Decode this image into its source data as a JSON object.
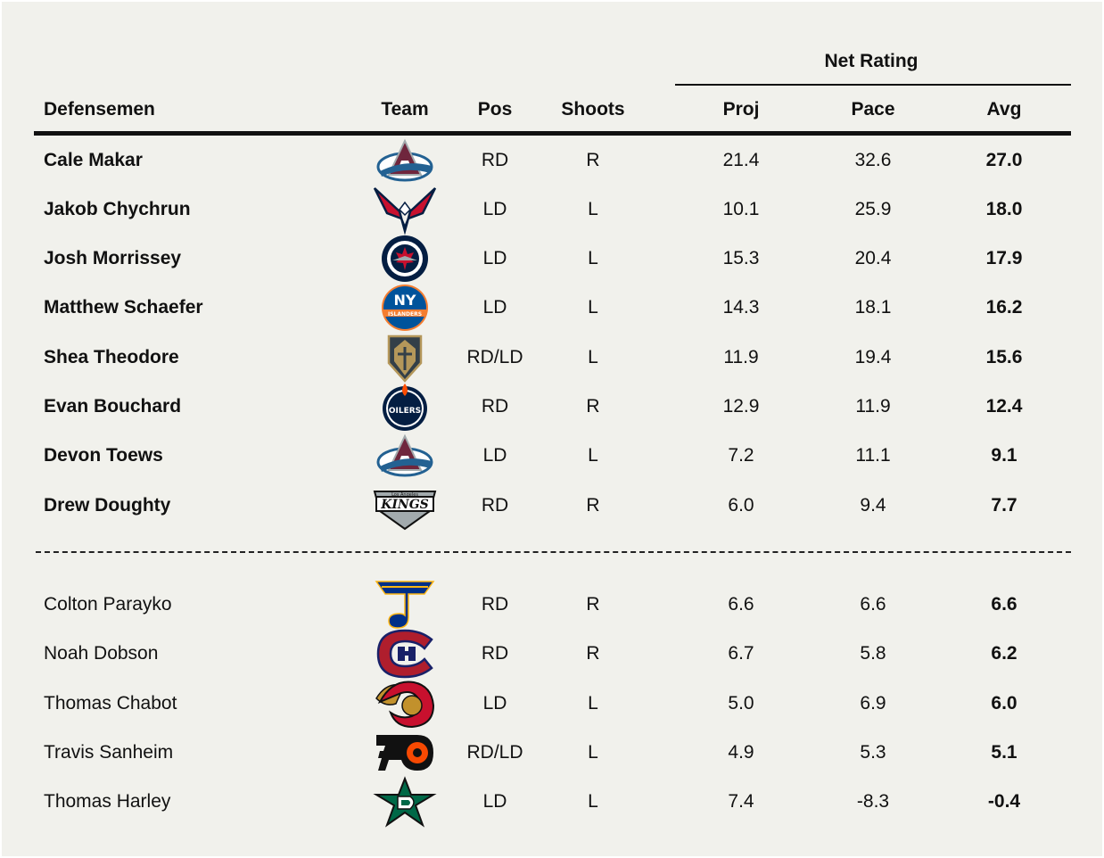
{
  "table": {
    "group_header": "Net Rating",
    "columns": {
      "player": "Defensemen",
      "team": "Team",
      "pos": "Pos",
      "shoots": "Shoots",
      "proj": "Proj",
      "pace": "Pace",
      "avg": "Avg"
    },
    "rows": [
      {
        "name": "Cale Makar",
        "team_logo": "colorado-avalanche-logo",
        "pos": "RD",
        "shoots": "R",
        "proj": "21.4",
        "pace": "32.6",
        "avg": "27.0"
      },
      {
        "name": "Jakob Chychrun",
        "team_logo": "washington-capitals-logo",
        "pos": "LD",
        "shoots": "L",
        "proj": "10.1",
        "pace": "25.9",
        "avg": "18.0"
      },
      {
        "name": "Josh Morrissey",
        "team_logo": "winnipeg-jets-logo",
        "pos": "LD",
        "shoots": "L",
        "proj": "15.3",
        "pace": "20.4",
        "avg": "17.9"
      },
      {
        "name": "Matthew Schaefer",
        "team_logo": "new-york-islanders-logo",
        "pos": "LD",
        "shoots": "L",
        "proj": "14.3",
        "pace": "18.1",
        "avg": "16.2"
      },
      {
        "name": "Shea Theodore",
        "team_logo": "vegas-golden-knights-logo",
        "pos": "RD/LD",
        "shoots": "L",
        "proj": "11.9",
        "pace": "19.4",
        "avg": "15.6"
      },
      {
        "name": "Evan Bouchard",
        "team_logo": "edmonton-oilers-logo",
        "pos": "RD",
        "shoots": "R",
        "proj": "12.9",
        "pace": "11.9",
        "avg": "12.4"
      },
      {
        "name": "Devon Toews",
        "team_logo": "colorado-avalanche-logo",
        "pos": "LD",
        "shoots": "L",
        "proj": "7.2",
        "pace": "11.1",
        "avg": "9.1"
      },
      {
        "name": "Drew Doughty",
        "team_logo": "los-angeles-kings-logo",
        "pos": "RD",
        "shoots": "R",
        "proj": "6.0",
        "pace": "9.4",
        "avg": "7.7"
      },
      {
        "name": "Colton Parayko",
        "team_logo": "st-louis-blues-logo",
        "pos": "RD",
        "shoots": "R",
        "proj": "6.6",
        "pace": "6.6",
        "avg": "6.6"
      },
      {
        "name": "Noah Dobson",
        "team_logo": "montreal-canadiens-logo",
        "pos": "RD",
        "shoots": "R",
        "proj": "6.7",
        "pace": "5.8",
        "avg": "6.2"
      },
      {
        "name": "Thomas Chabot",
        "team_logo": "ottawa-senators-logo",
        "pos": "LD",
        "shoots": "L",
        "proj": "5.0",
        "pace": "6.9",
        "avg": "6.0"
      },
      {
        "name": "Travis Sanheim",
        "team_logo": "philadelphia-flyers-logo",
        "pos": "RD/LD",
        "shoots": "L",
        "proj": "4.9",
        "pace": "5.3",
        "avg": "5.1"
      },
      {
        "name": "Thomas Harley",
        "team_logo": "dallas-stars-logo",
        "pos": "LD",
        "shoots": "L",
        "proj": "7.4",
        "pace": "-8.3",
        "avg": "-0.4"
      }
    ],
    "logo_text": {
      "islanders": "NY",
      "islanders_word": "ISLANDERS",
      "oilers": "OILERS",
      "kings_small": "Los Angeles",
      "kings": "KINGS"
    }
  }
}
